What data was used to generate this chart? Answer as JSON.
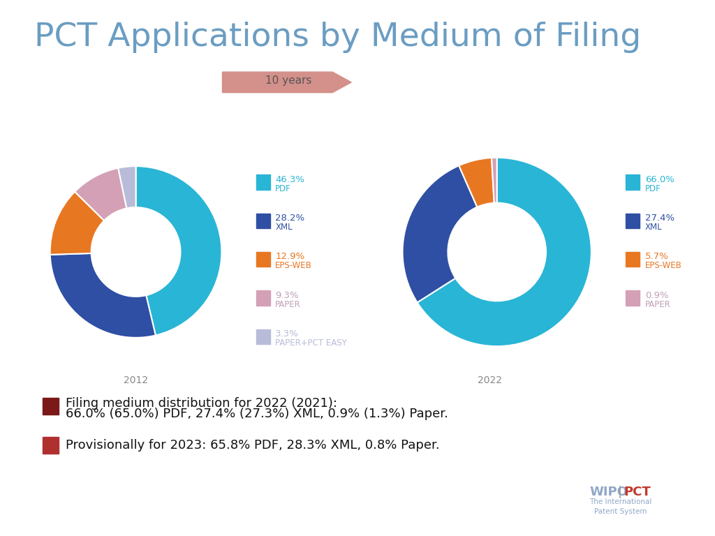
{
  "title": "PCT Applications by Medium of Filing",
  "title_color": "#6b9dc2",
  "title_fontsize": 34,
  "background_color": "#ffffff",
  "arrow_text": "10 years",
  "arrow_color": "#c97d7d",
  "arrow_text_color": "#555555",
  "arrow_bg": "#d4908a",
  "chart2012": {
    "year": "2012",
    "values": [
      46.3,
      28.2,
      12.9,
      9.3,
      3.3
    ],
    "colors": [
      "#29b5d5",
      "#2e4fa3",
      "#e87722",
      "#d4a0b5",
      "#b8bcd8"
    ],
    "pct_labels": [
      "46.3%",
      "28.2%",
      "12.9%",
      "9.3%",
      "3.3%"
    ],
    "name_labels": [
      "PDF",
      "XML",
      "EPS-WEB",
      "PAPER",
      "PAPER+PCT EASY"
    ],
    "label_colors": [
      "#29b5d5",
      "#2e4fa3",
      "#e87722",
      "#c0a0b8",
      "#b8bcd8"
    ]
  },
  "chart2022": {
    "year": "2022",
    "values": [
      66.0,
      27.4,
      5.7,
      0.9
    ],
    "colors": [
      "#29b5d5",
      "#2e4fa3",
      "#e87722",
      "#d4a0b5"
    ],
    "pct_labels": [
      "66.0%",
      "27.4%",
      "5.7%",
      "0.9%"
    ],
    "name_labels": [
      "PDF",
      "XML",
      "EPS-WEB",
      "PAPER"
    ],
    "label_colors": [
      "#29b5d5",
      "#2e4fa3",
      "#e87722",
      "#c0a0b8"
    ]
  },
  "bullet1_color": "#7b1818",
  "bullet2_color": "#b03030",
  "bullet1_line1": "Filing medium distribution for 2022 (2021):",
  "bullet1_line2": "66.0% (65.0%) PDF, 27.4% (27.3%) XML, 0.9% (1.3%) Paper.",
  "bullet2_text": "Provisionally for 2023: 65.8% PDF, 28.3% XML, 0.8% Paper.",
  "wipo_color": "#8fa8c8",
  "pct_color": "#c0392b",
  "wipo_sub": "The International\nPatent System"
}
